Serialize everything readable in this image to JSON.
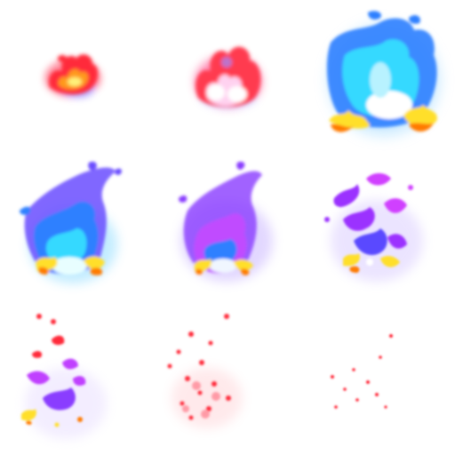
{
  "sprite_sheet": {
    "grid": {
      "columns": 3,
      "rows": 3
    },
    "background": "#ffffff",
    "frames": [
      {
        "index": 1,
        "stage": "ignite-small",
        "colors": [
          "#ff2a3a",
          "#ff9a1a",
          "#fff27a",
          "#7a5cff"
        ]
      },
      {
        "index": 2,
        "stage": "ignite-bloom",
        "colors": [
          "#ff3b4f",
          "#ffd2f0",
          "#ffffff",
          "#a08cff"
        ]
      },
      {
        "index": 3,
        "stage": "burst-peak",
        "colors": [
          "#2f80ff",
          "#35d9ff",
          "#ffffff",
          "#ffdf2a",
          "#ff7a00"
        ]
      },
      {
        "index": 4,
        "stage": "burst-sustain",
        "colors": [
          "#6a4dff",
          "#2f80ff",
          "#35d9ff",
          "#ffdf2a",
          "#ff7a00"
        ]
      },
      {
        "index": 5,
        "stage": "shift-violet",
        "colors": [
          "#8a3cff",
          "#c04cff",
          "#2f80ff",
          "#ffdf2a",
          "#ff7a00"
        ]
      },
      {
        "index": 6,
        "stage": "violet-scatter",
        "colors": [
          "#9b30ff",
          "#d040ff",
          "#5a48ff",
          "#ffdf2a",
          "#ff7a00"
        ]
      },
      {
        "index": 7,
        "stage": "fade-red-violet",
        "colors": [
          "#ff2a3a",
          "#c040ff",
          "#8a3cff",
          "#ffdf2a"
        ]
      },
      {
        "index": 8,
        "stage": "embers",
        "colors": [
          "#ff2a3a",
          "#ff7a8a",
          "#ffb0b8"
        ]
      },
      {
        "index": 9,
        "stage": "embers-last",
        "colors": [
          "#ff2a3a",
          "#ff8a9a"
        ]
      }
    ]
  }
}
